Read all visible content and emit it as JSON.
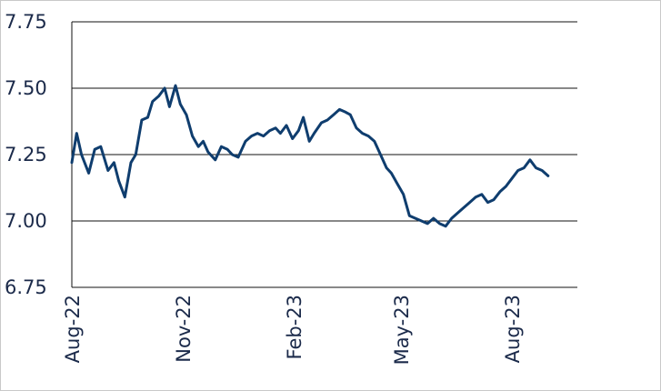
{
  "chart_data": {
    "type": "line",
    "title": "",
    "xlabel": "",
    "ylabel": "",
    "ylim": [
      6.75,
      7.75
    ],
    "yticks": [
      "7.75",
      "7.50",
      "7.25",
      "7.00",
      "6.75"
    ],
    "ytick_values": [
      7.75,
      7.5,
      7.25,
      7.0,
      6.75
    ],
    "xticks": [
      "Aug-22",
      "Nov-22",
      "Feb-23",
      "May-23",
      "Aug-23"
    ],
    "xtick_dates": [
      "2022-08-01",
      "2022-11-01",
      "2023-02-01",
      "2023-05-01",
      "2023-08-01"
    ],
    "grid": "horizontal",
    "legend": "none",
    "line_color": "#0f3d6e",
    "series": [
      {
        "x": [
          "2022-08-01",
          "2022-08-05",
          "2022-08-09",
          "2022-08-15",
          "2022-08-20",
          "2022-08-25",
          "2022-08-31",
          "2022-09-05",
          "2022-09-09",
          "2022-09-14",
          "2022-09-19",
          "2022-09-23",
          "2022-09-28",
          "2022-10-03",
          "2022-10-07",
          "2022-10-12",
          "2022-10-17",
          "2022-10-21",
          "2022-10-26",
          "2022-10-30",
          "2022-11-04",
          "2022-11-09",
          "2022-11-14",
          "2022-11-18",
          "2022-11-22",
          "2022-11-28",
          "2022-12-03",
          "2022-12-08",
          "2022-12-12",
          "2022-12-17",
          "2022-12-23",
          "2022-12-28",
          "2023-01-02",
          "2023-01-07",
          "2023-01-12",
          "2023-01-17",
          "2023-01-21",
          "2023-01-26",
          "2023-01-31",
          "2023-02-05",
          "2023-02-09",
          "2023-02-14",
          "2023-02-18",
          "2023-02-24",
          "2023-03-01",
          "2023-03-06",
          "2023-03-11",
          "2023-03-16",
          "2023-03-20",
          "2023-03-25",
          "2023-03-30",
          "2023-04-04",
          "2023-04-09",
          "2023-04-14",
          "2023-04-19",
          "2023-04-23",
          "2023-04-28",
          "2023-05-03",
          "2023-05-08",
          "2023-05-13",
          "2023-05-18",
          "2023-05-23",
          "2023-05-28",
          "2023-06-02",
          "2023-06-07",
          "2023-06-12",
          "2023-06-17",
          "2023-06-22",
          "2023-06-27",
          "2023-07-02",
          "2023-07-07",
          "2023-07-12",
          "2023-07-17",
          "2023-07-22",
          "2023-07-27",
          "2023-08-01",
          "2023-08-06",
          "2023-08-11",
          "2023-08-16",
          "2023-08-21",
          "2023-08-26",
          "2023-08-31"
        ],
        "values": [
          7.22,
          7.33,
          7.25,
          7.18,
          7.27,
          7.28,
          7.19,
          7.22,
          7.15,
          7.09,
          7.22,
          7.25,
          7.38,
          7.39,
          7.45,
          7.47,
          7.5,
          7.43,
          7.51,
          7.44,
          7.4,
          7.32,
          7.28,
          7.3,
          7.26,
          7.23,
          7.28,
          7.27,
          7.25,
          7.24,
          7.3,
          7.32,
          7.33,
          7.32,
          7.34,
          7.35,
          7.33,
          7.36,
          7.31,
          7.34,
          7.39,
          7.3,
          7.33,
          7.37,
          7.38,
          7.4,
          7.42,
          7.41,
          7.4,
          7.35,
          7.33,
          7.32,
          7.3,
          7.25,
          7.2,
          7.18,
          7.14,
          7.1,
          7.02,
          7.01,
          7.0,
          6.99,
          7.01,
          6.99,
          6.98,
          7.01,
          7.03,
          7.05,
          7.07,
          7.09,
          7.1,
          7.07,
          7.08,
          7.11,
          7.13,
          7.16,
          7.19,
          7.2,
          7.23,
          7.2,
          7.19,
          7.17
        ]
      }
    ]
  }
}
